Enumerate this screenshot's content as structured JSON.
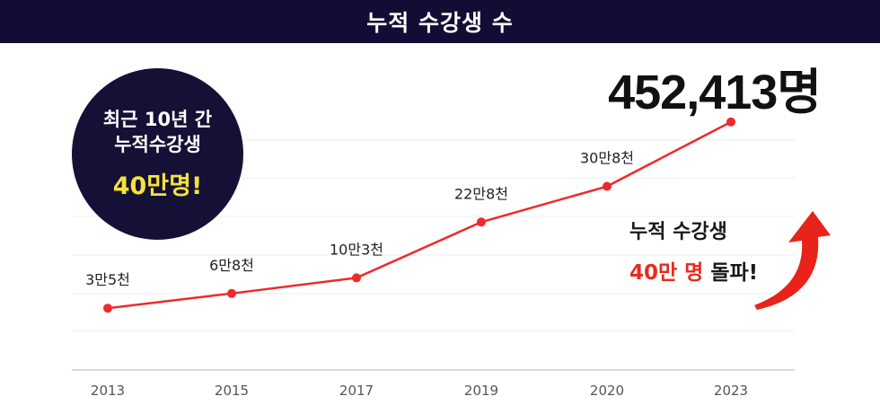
{
  "header": {
    "title": "누적 수강생 수"
  },
  "total_text": "452,413명",
  "badge": {
    "line1": "최근 10년 간",
    "line2": "누적수강생",
    "highlight": "40만명!"
  },
  "callout": {
    "line1": "누적 수강생",
    "line2_red": "40만 명",
    "line2_dark": "돌파!"
  },
  "colors": {
    "header_bg": "#110d34",
    "line": "#ee2a2a",
    "badge_highlight": "#f5e23a",
    "callout_red": "#e62b1e"
  },
  "chart_data": {
    "type": "line",
    "categories": [
      "2013",
      "2015",
      "2017",
      "2019",
      "2020",
      "2023"
    ],
    "values": [
      35000,
      68000,
      103000,
      228000,
      308000,
      452413
    ],
    "labels": [
      "3만5천",
      "6만8천",
      "10만3천",
      "22만8천",
      "30만8천",
      ""
    ],
    "grid": true
  }
}
